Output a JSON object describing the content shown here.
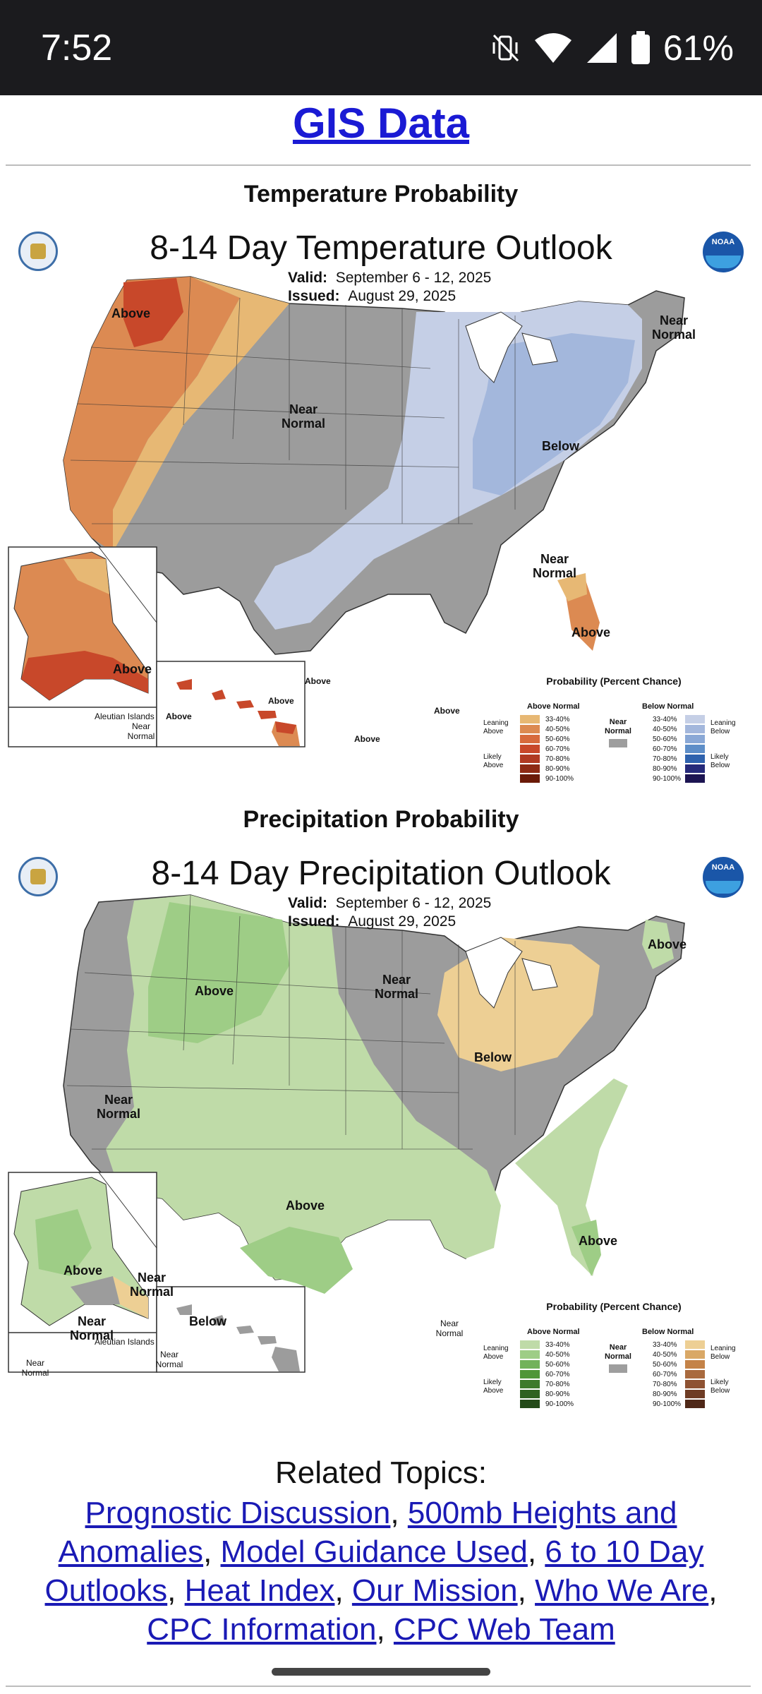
{
  "status_bar": {
    "time": "7:52",
    "battery": "61%",
    "icons": [
      "vibrate-off-icon",
      "wifi-icon",
      "signal-icon",
      "battery-icon"
    ]
  },
  "header": {
    "gis_link": "GIS Data"
  },
  "temperature": {
    "section_heading": "Temperature Probability",
    "title": "8-14 Day Temperature Outlook",
    "valid_label": "Valid:",
    "valid_value": "September 6 - 12, 2025",
    "issued_label": "Issued:",
    "issued_value": "August 29, 2025",
    "labels": {
      "above_nw": "Above",
      "near_normal_west": "Near Normal",
      "near_normal_ne": "Near Normal",
      "below": "Below",
      "near_normal_se": "Near Normal",
      "above_fl": "Above",
      "above_ak": "Above",
      "aleutian": "Aleutian Islands",
      "above_aleutian": "Above",
      "near_normal_aleutian": "Near Normal",
      "hi_above_1": "Above",
      "hi_above_2": "Above",
      "hi_above_3": "Above",
      "hi_above_4": "Above"
    },
    "legend": {
      "title": "Probability (Percent Chance)",
      "above_head": "Above Normal",
      "below_head": "Below Normal",
      "near_head": "Near Normal",
      "leaning_above": "Leaning Above",
      "likely_above": "Likely Above",
      "leaning_below": "Leaning Below",
      "likely_below": "Likely Below",
      "ranges": [
        "33-40%",
        "40-50%",
        "50-60%",
        "60-70%",
        "70-80%",
        "80-90%",
        "90-100%"
      ],
      "above_colors": [
        "#e7b874",
        "#dc8a52",
        "#d76a3d",
        "#c8482a",
        "#b03a22",
        "#8e2a14",
        "#6b1a08"
      ],
      "below_colors": [
        "#c5cfe6",
        "#a3b7dc",
        "#8aa8d6",
        "#5e8ec8",
        "#2f62ad",
        "#262a7a",
        "#1c1452"
      ],
      "near_color": "#9e9e9e"
    }
  },
  "precipitation": {
    "section_heading": "Precipitation Probability",
    "title": "8-14 Day Precipitation Outlook",
    "valid_label": "Valid:",
    "valid_value": "September 6 - 12, 2025",
    "issued_label": "Issued:",
    "issued_value": "August 29, 2025",
    "labels": {
      "above_mt": "Above",
      "near_normal_north": "Near Normal",
      "below_gl": "Below",
      "above_me": "Above",
      "near_normal_ca": "Near Normal",
      "above_tx": "Above",
      "above_fl": "Above",
      "above_ak": "Above",
      "near_normal_ak1": "Near Normal",
      "near_normal_ak2": "Near Normal",
      "below_ak": "Below",
      "aleutian": "Aleutian Islands",
      "near_normal_al1": "Near Normal",
      "near_normal_al2": "Near Normal",
      "near_normal_hi": "Near Normal"
    },
    "legend": {
      "title": "Probability (Percent Chance)",
      "above_head": "Above Normal",
      "below_head": "Below Normal",
      "near_head": "Near Normal",
      "leaning_above": "Leaning Above",
      "likely_above": "Likely Above",
      "leaning_below": "Leaning Below",
      "likely_below": "Likely Below",
      "ranges": [
        "33-40%",
        "40-50%",
        "50-60%",
        "60-70%",
        "70-80%",
        "80-90%",
        "90-100%"
      ],
      "above_colors": [
        "#bfdba8",
        "#9ecd86",
        "#72b25a",
        "#4f9638",
        "#3d7a2a",
        "#2f6220",
        "#234a18"
      ],
      "below_colors": [
        "#edcf94",
        "#d9a866",
        "#c48348",
        "#a96a3e",
        "#8e5232",
        "#6e3c24",
        "#4f2818"
      ],
      "near_color": "#9e9e9e"
    }
  },
  "related": {
    "title": "Related Topics:",
    "links": [
      "Prognostic Discussion",
      "500mb Heights and Anomalies",
      "Model Guidance Used",
      "6 to 10 Day Outlooks",
      "Heat Index",
      "Our Mission",
      "Who We Are",
      "CPC Information",
      "CPC Web Team"
    ],
    "separator": ", "
  }
}
